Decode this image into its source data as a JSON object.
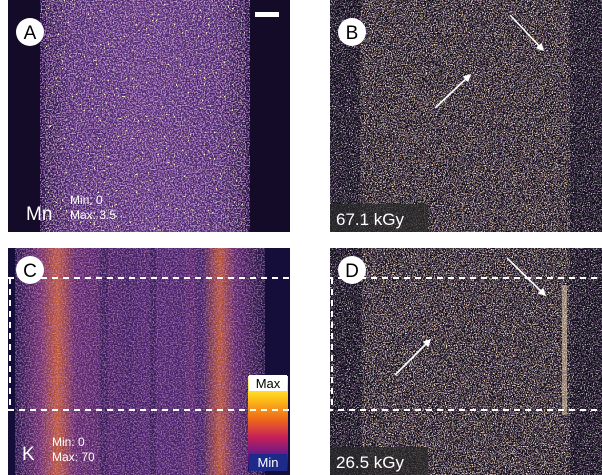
{
  "panels": [
    {
      "label": "A",
      "element": "Mn",
      "min": "Min: 0",
      "max": "Max: 3.5"
    },
    {
      "label": "B",
      "dose": "67.1 kGy"
    },
    {
      "label": "C",
      "element": "K",
      "min": "Min: 0",
      "max": "Max: 70"
    },
    {
      "label": "D",
      "dose": "26.5 kGy"
    }
  ],
  "colorbar": {
    "max": "Max",
    "min": "Min"
  }
}
